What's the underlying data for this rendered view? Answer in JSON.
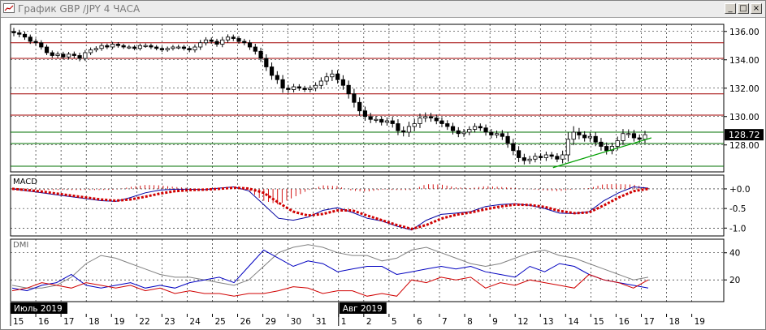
{
  "window": {
    "title": "График GBP /JPY  4 ЧАСА",
    "minimize_glyph": "_",
    "maximize_glyph": "□",
    "close_glyph": "×"
  },
  "colors": {
    "candle": "#000000",
    "resistance_lines": "#a00000",
    "support_lines": "#007000",
    "trend_line": "#00a000",
    "macd_line": "#0000a0",
    "macd_signal": "#d00000",
    "macd_histogram": "#d00000",
    "dmi_plus": "#0000c0",
    "dmi_minus": "#d00000",
    "adx": "#808080",
    "grid": "#000000"
  },
  "chart_data": [
    {
      "type": "candlestick",
      "instrument": "GBP /JPY",
      "timeframe": "4 ЧАСА",
      "current_price_label": "128.72",
      "y_ticks": [
        "136.00",
        "134.00",
        "132.00",
        "130.00",
        "128.00"
      ],
      "ylim": [
        126.1,
        136.5
      ],
      "x_ticks": [
        "15",
        "16",
        "17",
        "18",
        "19",
        "22",
        "23",
        "24",
        "25",
        "26",
        "29",
        "30",
        "31",
        "1",
        "2",
        "5",
        "6",
        "7",
        "8",
        "9",
        "12",
        "13",
        "14",
        "15",
        "16",
        "17",
        "18",
        "19"
      ],
      "month_labels": [
        {
          "label": "Июль 2019",
          "at_tick": 0
        },
        {
          "label": "Авг 2019",
          "at_tick": 13
        }
      ],
      "horizontal_levels": [
        {
          "value": 135.2,
          "kind": "resistance"
        },
        {
          "value": 134.1,
          "kind": "resistance"
        },
        {
          "value": 131.6,
          "kind": "resistance"
        },
        {
          "value": 130.1,
          "kind": "resistance"
        },
        {
          "value": 128.9,
          "kind": "support"
        },
        {
          "value": 128.1,
          "kind": "support"
        },
        {
          "value": 126.5,
          "kind": "support"
        }
      ],
      "trend_line": {
        "from": [
          21.5,
          126.4
        ],
        "to": [
          25.4,
          128.5
        ]
      },
      "closes": [
        135.9,
        135.8,
        135.6,
        135.3,
        135.2,
        134.9,
        134.5,
        134.3,
        134.4,
        134.2,
        134.4,
        134.3,
        134.1,
        134.5,
        134.7,
        134.8,
        135.0,
        134.9,
        135.1,
        135.0,
        134.9,
        134.9,
        134.8,
        135.0,
        135.0,
        134.9,
        134.8,
        134.7,
        134.8,
        134.9,
        134.9,
        134.8,
        134.7,
        134.9,
        135.2,
        135.4,
        135.3,
        135.1,
        135.4,
        135.6,
        135.5,
        135.3,
        135.2,
        134.9,
        134.6,
        134.1,
        133.5,
        132.9,
        132.6,
        132.0,
        131.9,
        132.1,
        132.0,
        131.9,
        132.0,
        132.2,
        132.5,
        132.8,
        133.0,
        132.6,
        132.2,
        131.6,
        131.0,
        130.4,
        130.0,
        129.8,
        129.8,
        129.6,
        129.7,
        129.5,
        129.0,
        128.9,
        129.3,
        129.5,
        129.9,
        130.0,
        129.9,
        129.7,
        129.5,
        129.3,
        129.0,
        128.8,
        128.9,
        129.1,
        129.3,
        129.2,
        128.9,
        128.7,
        128.8,
        128.6,
        128.1,
        127.6,
        127.1,
        126.9,
        127.0,
        127.2,
        127.1,
        127.3,
        127.2,
        127.0,
        127.3,
        128.4,
        128.9,
        128.7,
        128.5,
        128.6,
        128.2,
        127.9,
        127.6,
        127.9,
        128.3,
        128.8,
        128.8,
        128.5,
        128.4,
        128.72
      ],
      "volatility": [
        0.4,
        0.36,
        0.32,
        0.3,
        0.34,
        0.3,
        0.28,
        0.26,
        0.3,
        0.28,
        0.26,
        0.3,
        0.34,
        0.3,
        0.28,
        0.26,
        0.28,
        0.24,
        0.26,
        0.24,
        0.22,
        0.24,
        0.22,
        0.24,
        0.26,
        0.24,
        0.22,
        0.24,
        0.22,
        0.24,
        0.26,
        0.24,
        0.28,
        0.3,
        0.34,
        0.32,
        0.28,
        0.3,
        0.36,
        0.32,
        0.3,
        0.28,
        0.3,
        0.34,
        0.38,
        0.42,
        0.48,
        0.52,
        0.5,
        0.54,
        0.4,
        0.34,
        0.3,
        0.28,
        0.32,
        0.36,
        0.44,
        0.48,
        0.5,
        0.46,
        0.52,
        0.56,
        0.6,
        0.58,
        0.5,
        0.44,
        0.4,
        0.38,
        0.4,
        0.46,
        0.52,
        0.5,
        0.56,
        0.54,
        0.52,
        0.48,
        0.44,
        0.4,
        0.42,
        0.4,
        0.44,
        0.42,
        0.38,
        0.36,
        0.38,
        0.36,
        0.4,
        0.38,
        0.36,
        0.42,
        0.5,
        0.54,
        0.52,
        0.46,
        0.4,
        0.38,
        0.36,
        0.38,
        0.34,
        0.36,
        0.5,
        0.8,
        0.7,
        0.5,
        0.44,
        0.46,
        0.48,
        0.5,
        0.46,
        0.44,
        0.48,
        0.54,
        0.5,
        0.44,
        0.4,
        0.46
      ]
    },
    {
      "type": "line",
      "name": "MACD",
      "y_ticks": [
        "+0.0",
        "-0.5",
        "-1.0"
      ],
      "ylim": [
        -1.2,
        0.35
      ],
      "macd": [
        0.0,
        -0.05,
        -0.1,
        -0.15,
        -0.2,
        -0.25,
        -0.3,
        -0.32,
        -0.22,
        -0.1,
        -0.03,
        -0.01,
        -0.01,
        -0.02,
        0.02,
        0.05,
        -0.05,
        -0.4,
        -0.75,
        -0.8,
        -0.72,
        -0.55,
        -0.48,
        -0.6,
        -0.75,
        -0.82,
        -0.95,
        -1.05,
        -0.8,
        -0.65,
        -0.62,
        -0.58,
        -0.45,
        -0.4,
        -0.38,
        -0.42,
        -0.5,
        -0.62,
        -0.63,
        -0.58,
        -0.3,
        -0.1,
        0.05,
        0.02
      ],
      "signal": [
        0.0,
        -0.03,
        -0.07,
        -0.12,
        -0.17,
        -0.22,
        -0.27,
        -0.3,
        -0.27,
        -0.2,
        -0.12,
        -0.06,
        -0.03,
        -0.02,
        0.0,
        0.03,
        0.01,
        -0.1,
        -0.35,
        -0.58,
        -0.68,
        -0.64,
        -0.55,
        -0.55,
        -0.68,
        -0.8,
        -0.92,
        -1.02,
        -0.92,
        -0.76,
        -0.66,
        -0.6,
        -0.52,
        -0.45,
        -0.4,
        -0.41,
        -0.46,
        -0.56,
        -0.62,
        -0.6,
        -0.42,
        -0.22,
        -0.06,
        0.0
      ],
      "histogram": [
        0.0,
        -0.02,
        -0.03,
        -0.03,
        -0.03,
        -0.03,
        -0.03,
        -0.02,
        0.05,
        0.1,
        0.09,
        0.05,
        0.02,
        0.0,
        0.02,
        0.02,
        -0.06,
        -0.3,
        -0.4,
        -0.22,
        -0.04,
        0.09,
        0.07,
        -0.05,
        -0.07,
        -0.02,
        -0.03,
        -0.03,
        0.12,
        0.11,
        0.04,
        0.02,
        0.07,
        0.05,
        0.02,
        -0.01,
        -0.04,
        -0.06,
        -0.01,
        0.02,
        0.12,
        0.12,
        0.11,
        0.02
      ]
    },
    {
      "type": "line",
      "name": "DMI",
      "y_ticks": [
        "40",
        "20"
      ],
      "ylim": [
        4,
        50
      ],
      "dmi_plus": [
        14,
        12,
        16,
        18,
        24,
        16,
        14,
        16,
        18,
        14,
        16,
        14,
        18,
        20,
        22,
        18,
        30,
        42,
        36,
        30,
        34,
        32,
        26,
        28,
        30,
        30,
        24,
        26,
        28,
        30,
        28,
        30,
        26,
        24,
        22,
        30,
        26,
        32,
        30,
        24,
        20,
        18,
        16,
        14
      ],
      "dmi_minus": [
        12,
        14,
        18,
        16,
        14,
        18,
        16,
        14,
        16,
        12,
        14,
        10,
        12,
        10,
        10,
        8,
        10,
        10,
        12,
        15,
        14,
        10,
        12,
        12,
        8,
        10,
        8,
        20,
        18,
        22,
        20,
        22,
        14,
        18,
        16,
        20,
        18,
        16,
        14,
        24,
        20,
        18,
        14,
        20
      ],
      "adx": [
        16,
        14,
        14,
        16,
        22,
        32,
        38,
        36,
        32,
        28,
        24,
        22,
        22,
        20,
        18,
        16,
        20,
        30,
        40,
        44,
        46,
        44,
        40,
        38,
        38,
        34,
        36,
        42,
        44,
        40,
        36,
        32,
        30,
        32,
        36,
        40,
        42,
        38,
        36,
        32,
        28,
        24,
        20,
        22
      ]
    }
  ]
}
